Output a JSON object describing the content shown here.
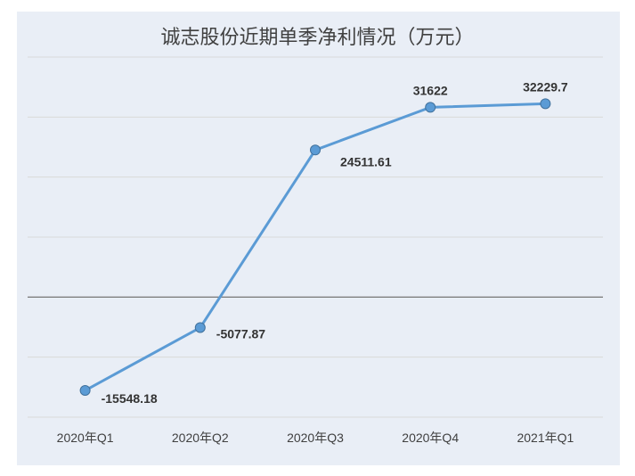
{
  "chart_data": {
    "type": "line",
    "title": "诚志股份近期单季净利情况（万元）",
    "categories": [
      "2020年Q1",
      "2020年Q2",
      "2020年Q3",
      "2020年Q4",
      "2021年Q1"
    ],
    "series": [
      {
        "values": [
          -15548.18,
          -5077.87,
          24511.61,
          31622,
          32229.7
        ]
      }
    ],
    "data_labels": [
      "-15548.18",
      "-5077.87",
      "24511.61",
      "31622",
      "32229.7"
    ],
    "ylim": [
      -20000,
      40000
    ],
    "grid_step": 10000,
    "xlabel": "",
    "ylabel": "",
    "grid": true,
    "legend": "none",
    "colors": {
      "line": "#5b9bd5",
      "marker": "#5b9bd5",
      "marker_edge": "#41719c",
      "zero_line": "#7f7f7f",
      "grid": "#d9d9d9",
      "background": "#e9eef6"
    }
  }
}
